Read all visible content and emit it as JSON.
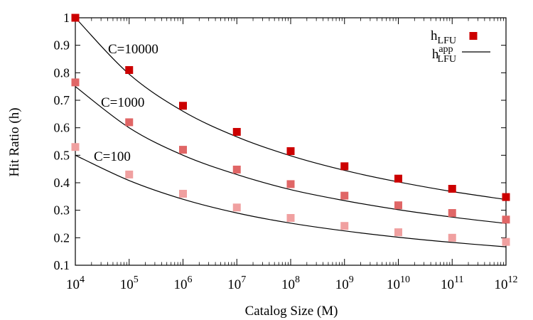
{
  "chart_data": {
    "type": "scatter",
    "xlabel": "Catalog Size (M)",
    "ylabel": "Hit Ratio (h)",
    "xscale": "log",
    "xlim": [
      10000,
      1000000000000
    ],
    "ylim": [
      0.1,
      1.0
    ],
    "xticks": [
      {
        "value": 10000,
        "base": "10",
        "exp": "4"
      },
      {
        "value": 100000,
        "base": "10",
        "exp": "5"
      },
      {
        "value": 1000000,
        "base": "10",
        "exp": "6"
      },
      {
        "value": 10000000,
        "base": "10",
        "exp": "7"
      },
      {
        "value": 100000000,
        "base": "10",
        "exp": "8"
      },
      {
        "value": 1000000000,
        "base": "10",
        "exp": "9"
      },
      {
        "value": 10000000000,
        "base": "10",
        "exp": "10"
      },
      {
        "value": 100000000000,
        "base": "10",
        "exp": "11"
      },
      {
        "value": 1000000000000,
        "base": "10",
        "exp": "12"
      }
    ],
    "yticks": [
      "0.1",
      "0.2",
      "0.3",
      "0.4",
      "0.5",
      "0.6",
      "0.7",
      "0.8",
      "0.9",
      "1"
    ],
    "grid": false,
    "legend": {
      "placement": "top-right",
      "entries": [
        {
          "base": "h",
          "sup": "",
          "sub": "LFU",
          "marker": "square",
          "color": "#cc0000"
        },
        {
          "base": "h",
          "sup": "app",
          "sub": "LFU",
          "marker": "line",
          "color": "#000000"
        }
      ]
    },
    "series": [
      {
        "label": "C=10000",
        "color": "#cc0000",
        "x": [
          10000,
          100000,
          1000000,
          10000000,
          100000000,
          1000000000,
          10000000000,
          100000000000,
          1000000000000
        ],
        "points": [
          1.0,
          0.81,
          0.68,
          0.585,
          0.515,
          0.46,
          0.415,
          0.378,
          0.348
        ],
        "approx": [
          1.0,
          0.795,
          0.66,
          0.567,
          0.498,
          0.445,
          0.403,
          0.368,
          0.339
        ]
      },
      {
        "label": "C=1000",
        "color": "#e06666",
        "x": [
          10000,
          100000,
          1000000,
          10000000,
          100000000,
          1000000000,
          10000000000,
          100000000000,
          1000000000000
        ],
        "points": [
          0.765,
          0.62,
          0.52,
          0.448,
          0.395,
          0.353,
          0.318,
          0.29,
          0.266
        ],
        "approx": [
          0.75,
          0.6,
          0.5,
          0.43,
          0.375,
          0.335,
          0.302,
          0.275,
          0.252
        ]
      },
      {
        "label": "C=100",
        "color": "#f0a0a0",
        "x": [
          10000,
          100000,
          1000000,
          10000000,
          100000000,
          1000000000,
          10000000000,
          100000000000,
          1000000000000
        ],
        "points": [
          0.53,
          0.43,
          0.36,
          0.31,
          0.272,
          0.243,
          0.22,
          0.2,
          0.185
        ],
        "approx": [
          0.5,
          0.408,
          0.34,
          0.29,
          0.253,
          0.225,
          0.202,
          0.183,
          0.167
        ]
      }
    ]
  }
}
